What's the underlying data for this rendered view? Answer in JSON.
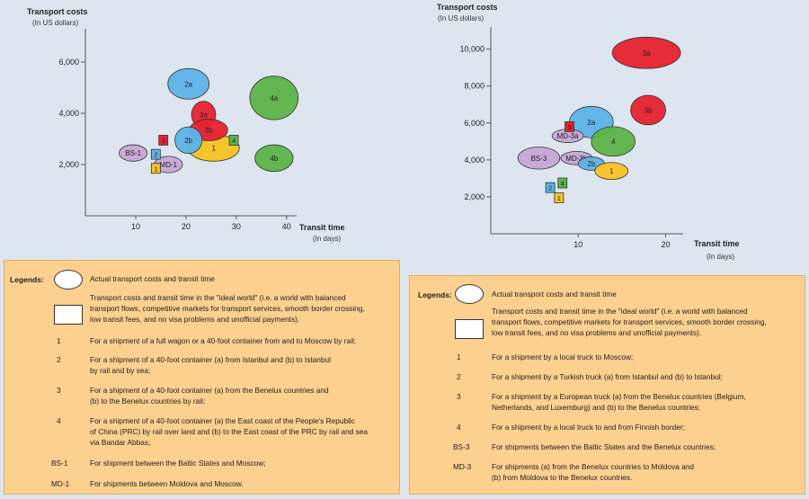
{
  "colors": {
    "blue": "#5db3e8",
    "red": "#e8212e",
    "green": "#5db347",
    "yellow": "#f7c322",
    "purple": "#c7a6d4",
    "legend_bg": "#fcd08f"
  },
  "chart_data": [
    {
      "type": "scatter",
      "ylabel": "Transport costs",
      "ylabel_unit": "(In US dollars)",
      "xlabel": "Transit time",
      "xlabel_unit": "(In days)",
      "x_ticks": [
        "10",
        "20",
        "30",
        "40"
      ],
      "y_ticks": [
        "6,000",
        "4,000",
        "2,000"
      ],
      "xlim": [
        0,
        42
      ],
      "ylim": [
        0,
        7300
      ],
      "grid": false,
      "actual": [
        {
          "label": "2a",
          "x": 20.5,
          "y": 5150,
          "rx": 4.1,
          "ry": 600,
          "color": "blue"
        },
        {
          "label": "4a",
          "x": 37.5,
          "y": 4600,
          "rx": 4.8,
          "ry": 850,
          "color": "green"
        },
        {
          "label": "3a",
          "x": 23.5,
          "y": 3950,
          "rx": 2.4,
          "ry": 520,
          "color": "red"
        },
        {
          "label": "1",
          "x": 25.5,
          "y": 2650,
          "rx": 5.1,
          "ry": 520,
          "color": "yellow"
        },
        {
          "label": "3b",
          "x": 24.5,
          "y": 3350,
          "rx": 3.8,
          "ry": 420,
          "color": "red"
        },
        {
          "label": "2b",
          "x": 20.5,
          "y": 2950,
          "rx": 2.7,
          "ry": 520,
          "color": "blue"
        },
        {
          "label": "4b",
          "x": 37.5,
          "y": 2250,
          "rx": 3.8,
          "ry": 520,
          "color": "green"
        },
        {
          "label": "BS-1",
          "x": 9.5,
          "y": 2450,
          "rx": 2.8,
          "ry": 320,
          "color": "purple"
        },
        {
          "label": "MD-1",
          "x": 16.5,
          "y": 2000,
          "rx": 2.8,
          "ry": 320,
          "color": "purple"
        }
      ],
      "ideal": [
        {
          "label": "3",
          "x": 15.5,
          "y": 2950,
          "color": "red"
        },
        {
          "label": "4",
          "x": 29.5,
          "y": 2950,
          "color": "green"
        },
        {
          "label": "2",
          "x": 14.0,
          "y": 2400,
          "color": "blue"
        },
        {
          "label": "1",
          "x": 14.0,
          "y": 1850,
          "color": "yellow"
        }
      ]
    },
    {
      "type": "scatter",
      "ylabel": "Transport costs",
      "ylabel_unit": "(In US dollars)",
      "xlabel": "Transit time",
      "xlabel_unit": "(In days)",
      "x_ticks": [
        "10",
        "20"
      ],
      "y_ticks": [
        "10,000",
        "8,000",
        "6,000",
        "4,000",
        "2,000"
      ],
      "xlim": [
        0,
        22
      ],
      "ylim": [
        0,
        11200
      ],
      "grid": false,
      "actual": [
        {
          "label": "3a",
          "x": 17.8,
          "y": 9800,
          "rx": 3.9,
          "ry": 850,
          "color": "red"
        },
        {
          "label": "3b",
          "x": 18.0,
          "y": 6700,
          "rx": 2.0,
          "ry": 800,
          "color": "red"
        },
        {
          "label": "2a",
          "x": 11.5,
          "y": 6050,
          "rx": 2.5,
          "ry": 850,
          "color": "blue"
        },
        {
          "label": "4",
          "x": 14.0,
          "y": 5000,
          "rx": 2.5,
          "ry": 800,
          "color": "green"
        },
        {
          "label": "MD-3a",
          "x": 8.8,
          "y": 5300,
          "rx": 1.8,
          "ry": 360,
          "color": "purple"
        },
        {
          "label": "BS-3",
          "x": 5.5,
          "y": 4100,
          "rx": 2.4,
          "ry": 600,
          "color": "purple"
        },
        {
          "label": "MD-3b",
          "x": 9.8,
          "y": 4100,
          "rx": 1.8,
          "ry": 360,
          "color": "purple"
        },
        {
          "label": "2b",
          "x": 11.5,
          "y": 3800,
          "rx": 1.5,
          "ry": 360,
          "color": "blue"
        },
        {
          "label": "1",
          "x": 13.8,
          "y": 3400,
          "rx": 1.9,
          "ry": 460,
          "color": "yellow"
        }
      ],
      "ideal": [
        {
          "label": "3",
          "x": 9.0,
          "y": 5800,
          "color": "red"
        },
        {
          "label": "4",
          "x": 8.2,
          "y": 2750,
          "color": "green"
        },
        {
          "label": "2",
          "x": 6.8,
          "y": 2500,
          "color": "blue"
        },
        {
          "label": "1",
          "x": 7.8,
          "y": 1950,
          "color": "yellow"
        }
      ]
    }
  ],
  "legend_left": {
    "title": "Legends:",
    "actual": "Actual transport costs and transit time",
    "ideal_lines": [
      "Transport costs and transit time in the \"ideal world\" (i.e. a world with balanced",
      "transport flows, competitive markets for transport services, smooth border crossing,",
      "low transit fees, and no visa problems and unofficial payments)."
    ],
    "items": [
      {
        "key": "1",
        "lines": [
          "For a shipment of a full wagon or a 40-foot container from and to Moscow by rail;"
        ]
      },
      {
        "key": "2",
        "lines": [
          "For a shipment of a 40-foot container (a) from Istanbul and (b) to Istanbul",
          "by rail and by sea;"
        ]
      },
      {
        "key": "3",
        "lines": [
          "For a shipment of a 40-foot container (a) from  the Benelux countries and",
          "(b) to the Benelux countries by rail;"
        ]
      },
      {
        "key": "4",
        "lines": [
          "For a shipment of a 40-foot container (a) the East coast of the People's Republic",
          "of China (PRC) by rail over land and  (b) to the East coast of the PRC by rail and sea",
          "via Bandar Abbas;"
        ]
      },
      {
        "key": "BS-1",
        "lines": [
          "For shipment between the Baltic States and Moscow;"
        ]
      },
      {
        "key": "MD-1",
        "lines": [
          "For shipments between Moldova and Moscow."
        ]
      }
    ]
  },
  "legend_right": {
    "title": "Legends:",
    "actual": "Actual transport costs and transit time",
    "ideal_lines": [
      "Transport costs and transit time in the \"ideal world\" (i.e. a world with balanced",
      "transport flows, competitive markets for transport services, smooth border crossing,",
      "low transit fees, and no visa problems and unofficial payments)."
    ],
    "items": [
      {
        "key": "1",
        "lines": [
          "For a shipment by a local truck to Moscow;"
        ]
      },
      {
        "key": "2",
        "lines": [
          "For a shipment by a Turkish truck (a) from Istanbul and (b) to Istanbul;"
        ]
      },
      {
        "key": "3",
        "lines": [
          "For a shipment by a European truck (a) from the Benelux countries (Belgium,",
          "Netherlands, and Luxemburg) and (b) to the Benelux countries;"
        ]
      },
      {
        "key": "4",
        "lines": [
          "For a shipment by a local truck to and from Finnish border;"
        ]
      },
      {
        "key": "BS-3",
        "lines": [
          "For shipments between the Baltic States and the Benelux countries;"
        ]
      },
      {
        "key": "MD-3",
        "lines": [
          "For shipments (a) from the Benelux countries to Moldova and",
          "(b) from Moldova to the Benelux countries."
        ]
      }
    ]
  }
}
